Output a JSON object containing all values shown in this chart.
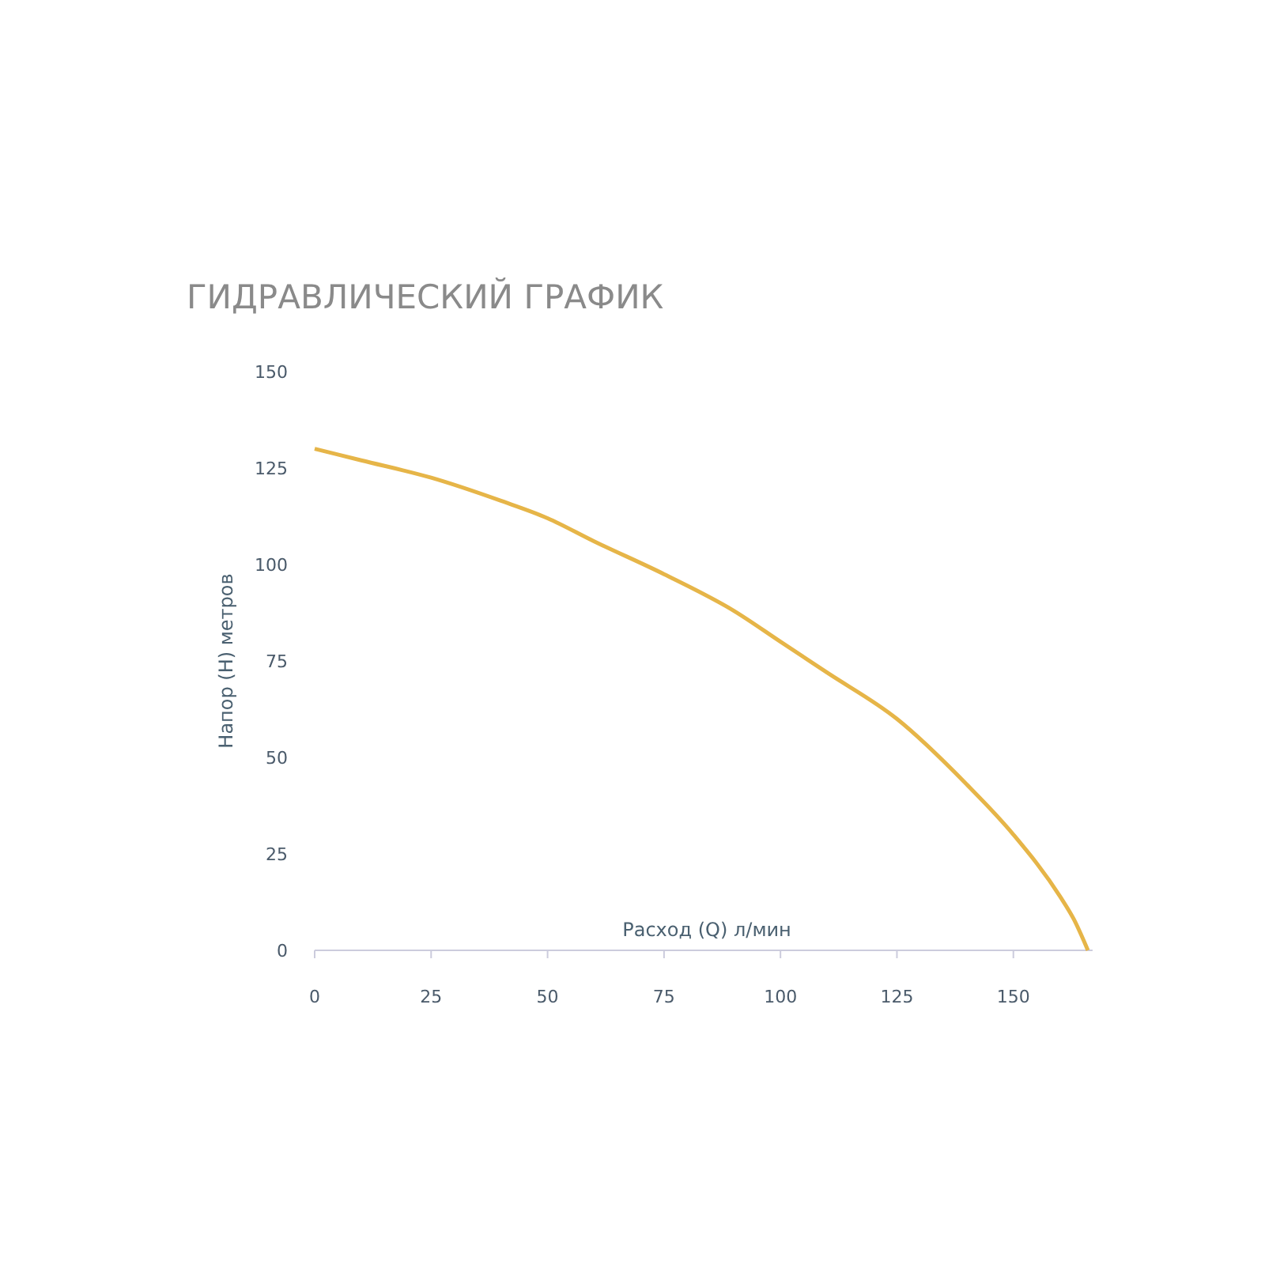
{
  "chart_data": {
    "type": "line",
    "title": "ГИДРАВЛИЧЕСКИЙ ГРАФИК",
    "xlabel": "Расход (Q) л/мин",
    "ylabel": "Напор (H) метров",
    "x": [
      0,
      10,
      25,
      40,
      50,
      60,
      75,
      90,
      100,
      110,
      125,
      140,
      150,
      160,
      163,
      166
    ],
    "series": [
      {
        "color": "#e6b548",
        "values": [
          130,
          127,
          122.5,
          116.5,
          112,
          106,
          97.5,
          88,
          80,
          72,
          60,
          43,
          30,
          14,
          8,
          0
        ]
      }
    ],
    "xlim": [
      0,
      167
    ],
    "ylim": [
      0,
      150
    ],
    "xticks": [
      0,
      25,
      50,
      75,
      100,
      125,
      150
    ],
    "yticks": [
      0,
      25,
      50,
      75,
      100,
      125,
      150
    ],
    "grid": false,
    "marker": "none",
    "line_style": "solid"
  }
}
